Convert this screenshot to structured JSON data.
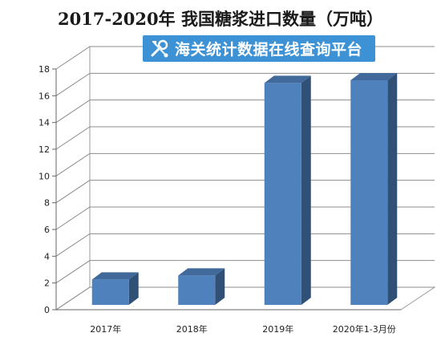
{
  "chart_data": {
    "type": "bar",
    "title": "2017-2020年 我国糖浆进口数量（万吨）",
    "categories": [
      "2017年",
      "2018年",
      "2019年",
      "2020年1-3月份"
    ],
    "values": [
      1.9,
      2.2,
      16.6,
      16.8
    ],
    "ylim": [
      0,
      18
    ],
    "yticks": [
      0,
      2,
      4,
      6,
      8,
      10,
      12,
      14,
      16,
      18
    ],
    "xlabel": "",
    "ylabel": "",
    "grid": true,
    "style": "3d-bar",
    "bar_color": "#4f81bd"
  },
  "watermark": {
    "text": "海关统计数据在线查询平台",
    "icon": "tools-icon",
    "background": "#3d92d6"
  }
}
